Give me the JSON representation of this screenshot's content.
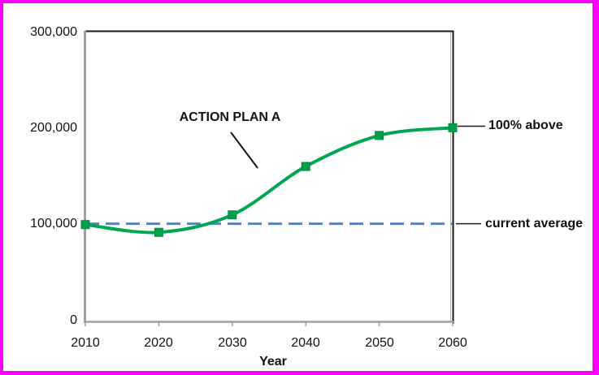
{
  "figure": {
    "frame_color": "#ff00ff",
    "background": "#ffffff"
  },
  "chart_data": {
    "type": "line",
    "title": "",
    "xlabel": "Year",
    "ylabel": "",
    "x": [
      2010,
      2020,
      2030,
      2040,
      2050,
      2060
    ],
    "xtick_labels": [
      "2010",
      "2020",
      "2030",
      "2040",
      "2050",
      "2060"
    ],
    "ytick_labels": [
      "300,000",
      "200,000",
      "100,000",
      "0"
    ],
    "ytick_values": [
      300000,
      200000,
      100000,
      0
    ],
    "xlim": [
      2010,
      2060
    ],
    "ylim": [
      0,
      300000
    ],
    "grid": false,
    "legend": "none",
    "series": [
      {
        "name": "ACTION PLAN A",
        "values": [
          100000,
          92000,
          110000,
          160000,
          192000,
          200000
        ],
        "color": "#00a651",
        "marker": "square",
        "marker_color": "#00a04c",
        "smooth": true
      }
    ],
    "reference_line": {
      "value": 100000,
      "style": "dashed",
      "color": "#5b84bd",
      "label": "current average"
    },
    "annotations": [
      {
        "text": "ACTION PLAN A",
        "points_to": "rising part of curve"
      },
      {
        "text": "100% above",
        "at_value": 200000
      },
      {
        "text": "current average",
        "at_value": 100000
      }
    ],
    "axis_color": "#9f9f9f",
    "plot_border_color": "#1a1a1a"
  }
}
